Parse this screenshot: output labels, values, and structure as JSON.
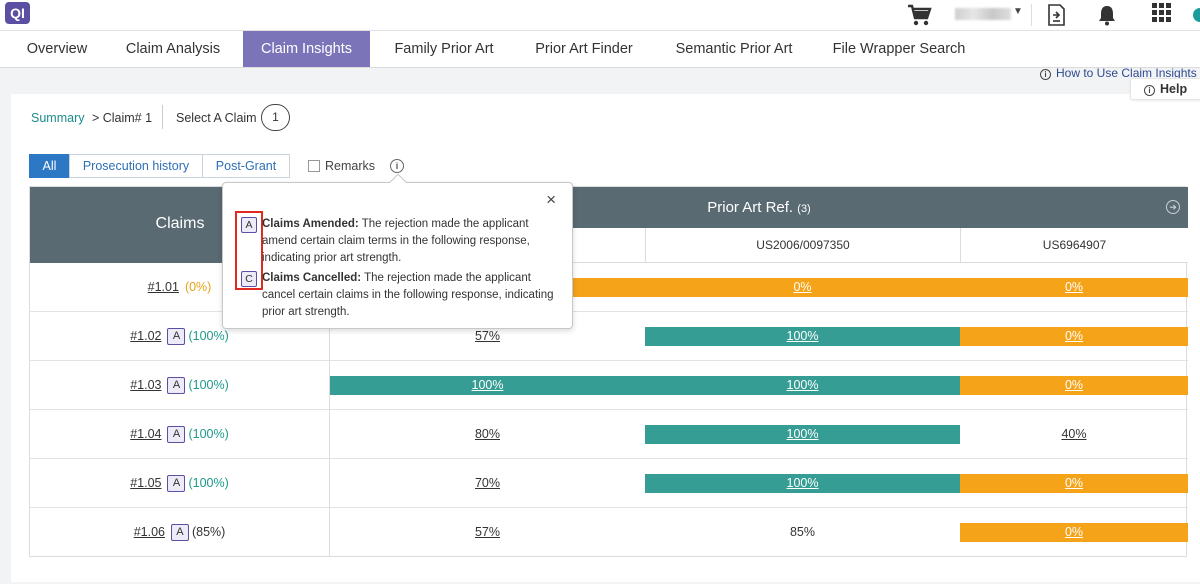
{
  "app": {
    "logo": "QI"
  },
  "topbar": {
    "icons": [
      "cart-icon",
      "export-icon",
      "bell-icon",
      "apps-icon"
    ],
    "user_caret": "▼"
  },
  "tabs": [
    {
      "label": "Overview",
      "active": false
    },
    {
      "label": "Claim Analysis",
      "active": false
    },
    {
      "label": "Claim Insights",
      "active": true
    },
    {
      "label": "Family Prior Art",
      "active": false
    },
    {
      "label": "Prior Art Finder",
      "active": false
    },
    {
      "label": "Semantic Prior Art",
      "active": false
    },
    {
      "label": "File Wrapper Search",
      "active": false
    }
  ],
  "howto": "How to Use Claim Insights",
  "help": "Help",
  "breadcrumb": {
    "summary": "Summary",
    "current": "> Claim# 1"
  },
  "select_claim": {
    "label": "Select A Claim",
    "value": "1"
  },
  "filters": [
    {
      "label": "All",
      "active": true
    },
    {
      "label": "Prosecution history",
      "active": false
    },
    {
      "label": "Post-Grant",
      "active": false
    }
  ],
  "remarks": {
    "label": "Remarks",
    "checked": false
  },
  "table": {
    "claims_header": "Claims",
    "prior_header": "Prior Art Ref.",
    "prior_count": "(3)",
    "refs": [
      "",
      "US2006/0097350",
      "US6964907"
    ],
    "rows": [
      {
        "claim": "#1.01",
        "badge": "",
        "pct": "(0%)",
        "pct_color": "orange",
        "cells": [
          {
            "v": "",
            "style": "orange"
          },
          {
            "v": "0%",
            "style": "orange"
          },
          {
            "v": "0%",
            "style": "orange"
          }
        ]
      },
      {
        "claim": "#1.02",
        "badge": "A",
        "pct": "(100%)",
        "pct_color": "teal",
        "cells": [
          {
            "v": "57%",
            "style": "plain"
          },
          {
            "v": "100%",
            "style": "teal"
          },
          {
            "v": "0%",
            "style": "orange"
          }
        ]
      },
      {
        "claim": "#1.03",
        "badge": "A",
        "pct": "(100%)",
        "pct_color": "teal",
        "cells": [
          {
            "v": "100%",
            "style": "teal"
          },
          {
            "v": "100%",
            "style": "teal"
          },
          {
            "v": "0%",
            "style": "orange"
          }
        ]
      },
      {
        "claim": "#1.04",
        "badge": "A",
        "pct": "(100%)",
        "pct_color": "teal",
        "cells": [
          {
            "v": "80%",
            "style": "plain"
          },
          {
            "v": "100%",
            "style": "teal"
          },
          {
            "v": "40%",
            "style": "plain"
          }
        ]
      },
      {
        "claim": "#1.05",
        "badge": "A",
        "pct": "(100%)",
        "pct_color": "teal",
        "cells": [
          {
            "v": "70%",
            "style": "plain"
          },
          {
            "v": "100%",
            "style": "teal"
          },
          {
            "v": "0%",
            "style": "orange"
          }
        ]
      },
      {
        "claim": "#1.06",
        "badge": "A",
        "pct": "(85%)",
        "pct_color": "plain",
        "cells": [
          {
            "v": "57%",
            "style": "plain"
          },
          {
            "v": "85%",
            "style": "plain_nou"
          },
          {
            "v": "0%",
            "style": "orange"
          }
        ]
      }
    ]
  },
  "popover": {
    "close": "×",
    "items": [
      {
        "badge": "A",
        "title": "Claims Amended:",
        "text": " The rejection made the applicant amend certain claim terms in the following response, indicating prior art strength."
      },
      {
        "badge": "C",
        "title": "Claims Cancelled:",
        "text": " The rejection made the applicant cancel certain claims in the following response, indicating prior art strength."
      }
    ]
  },
  "colors": {
    "accent": "#7b74b8",
    "teal": "#369d94",
    "orange": "#f5a318",
    "header": "#5a6a72"
  }
}
